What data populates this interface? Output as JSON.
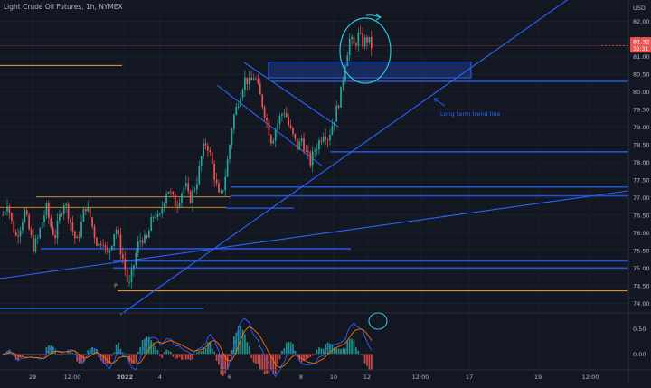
{
  "header": {
    "title": "Light Crude Oil Futures, 1h, NYMEX",
    "currency": "USD"
  },
  "colors": {
    "background": "#131722",
    "grid": "#1f2433",
    "axis_text": "#b2b5be",
    "up": "#26a69a",
    "down": "#ef5350",
    "trend_blue": "#2962ff",
    "level_orange": "#f0a030",
    "zone_fill": "#1e3a8a",
    "macd_line": "#2962ff",
    "signal_line": "#ff6d00",
    "annotation_teal": "#26c6da",
    "last_price_tag": "#ef5350"
  },
  "chart_data": [
    {
      "type": "candlestick",
      "title": "Light Crude Oil Futures, 1h, NYMEX",
      "x_ticks": [
        "29",
        "12:00",
        "2022",
        "4",
        "6",
        "8",
        "10",
        "12",
        "12:00",
        "17",
        "19",
        "12:00"
      ],
      "y_ticks": [
        "74.00",
        "74.50",
        "75.00",
        "75.50",
        "76.00",
        "76.50",
        "77.00",
        "77.50",
        "78.00",
        "78.50",
        "79.00",
        "79.50",
        "80.00",
        "80.50",
        "81.00",
        "81.50",
        "82.00"
      ],
      "ylim": [
        73.75,
        82.25
      ],
      "last_price": {
        "value": "81.32",
        "timer": "32:31"
      },
      "annotations": {
        "trend_label": "Long term trend line",
        "pivot_label": "P"
      },
      "price_path": [
        76.5,
        76.9,
        76.3,
        75.9,
        76.2,
        76.6,
        76.1,
        75.6,
        75.8,
        76.3,
        76.7,
        76.2,
        75.9,
        76.4,
        76.9,
        76.6,
        76.1,
        75.7,
        76.2,
        76.8,
        76.5,
        76.0,
        75.6,
        75.9,
        75.3,
        75.7,
        76.2,
        75.6,
        75.1,
        74.4,
        75.0,
        75.6,
        75.9,
        75.7,
        76.2,
        76.6,
        76.3,
        76.9,
        77.3,
        77.0,
        76.8,
        77.1,
        77.4,
        76.9,
        77.2,
        77.6,
        78.3,
        78.6,
        78.1,
        77.5,
        76.9,
        77.4,
        78.2,
        79.2,
        79.6,
        80.1,
        80.4,
        80.2,
        80.5,
        80.0,
        79.6,
        79.1,
        78.6,
        79.0,
        79.3,
        79.5,
        79.0,
        78.7,
        78.4,
        78.7,
        78.2,
        78.0,
        78.4,
        78.6,
        78.9,
        78.7,
        79.1,
        79.5,
        80.0,
        80.9,
        81.5,
        81.3,
        81.6,
        81.4,
        81.5,
        81.3
      ],
      "levels": {
        "horizontal": [
          80.3,
          78.3,
          77.3,
          77.05,
          76.7,
          75.55,
          75.2,
          75.0
        ],
        "pivot": 74.35,
        "orange_left": 80.75,
        "orange_lower": 77.02,
        "orange_mid": 76.72,
        "zone": [
          80.4,
          80.85
        ]
      }
    },
    {
      "type": "histogram",
      "title": "",
      "y_ticks": [
        "0.50",
        "0.00"
      ],
      "ylim": [
        -0.3,
        0.8
      ]
    }
  ]
}
